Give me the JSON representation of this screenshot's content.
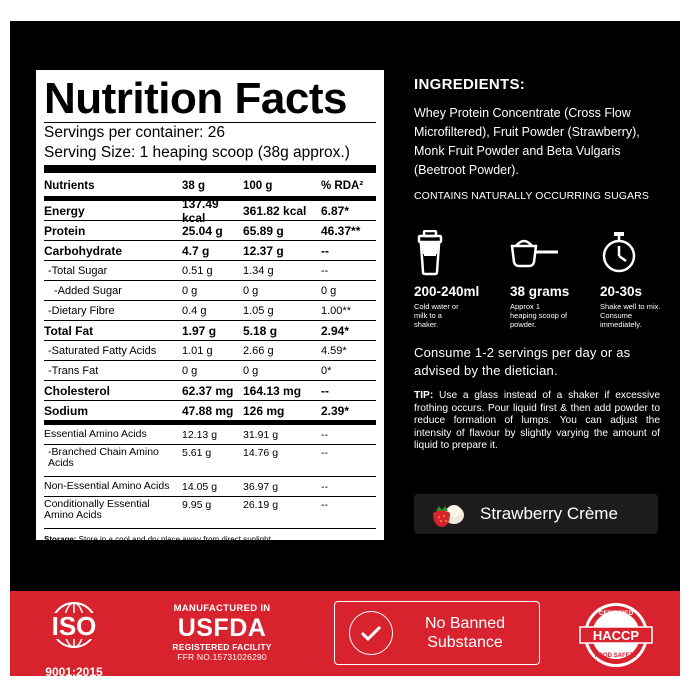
{
  "nutrition": {
    "title": "Nutrition Facts",
    "servings_per_container": "Servings per container: 26",
    "serving_size": "Serving Size: 1 heaping scoop (38g approx.)",
    "header": [
      "Nutrients",
      "38 g",
      "100 g",
      "% RDA²"
    ],
    "rows": [
      [
        "Energy",
        "137.49 kcal",
        "361.82 kcal",
        "6.87*"
      ],
      [
        "Protein",
        "25.04 g",
        "65.89 g",
        "46.37**"
      ],
      [
        "Carbohydrate",
        "4.7 g",
        "12.37 g",
        "--"
      ],
      [
        "-Total Sugar",
        "0.51 g",
        "1.34 g",
        "--"
      ],
      [
        "-Added Sugar",
        "0 g",
        "0 g",
        "0 g"
      ],
      [
        "-Dietary Fibre",
        "0.4 g",
        "1.05 g",
        "1.00**"
      ],
      [
        "Total Fat",
        "1.97 g",
        "5.18 g",
        "2.94*"
      ],
      [
        "-Saturated Fatty Acids",
        "1.01 g",
        "2.66 g",
        "4.59*"
      ],
      [
        "-Trans Fat",
        "0 g",
        "0 g",
        "0*"
      ],
      [
        "Cholesterol",
        "62.37 mg",
        "164.13 mg",
        "--"
      ],
      [
        "Sodium",
        "47.88 mg",
        "126 mg",
        "2.39*"
      ]
    ],
    "amino_rows": [
      [
        "Essential Amino Acids",
        "12.13 g",
        "31.91 g",
        "--"
      ],
      [
        "-Branched Chain Amino Acids",
        "5.61 g",
        "14.76 g",
        "--"
      ],
      [
        "Non-Essential Amino Acids",
        "14.05 g",
        "36.97 g",
        "--"
      ],
      [
        "Conditionally Essential Amino Acids",
        "9.95 g",
        "26.19 g",
        "--"
      ]
    ],
    "storage_label": "Storage:",
    "storage_text": " Store in a cool and dry place away from direct sunlight."
  },
  "ingredients": {
    "title": "INGREDIENTS:",
    "text": "Whey Protein Concentrate (Cross Flow Microfiltered), Fruit Powder (Strawberry), Monk Fruit Powder and Beta Vulgaris (Beetroot Powder).",
    "sugars_note": "CONTAINS NATURALLY OCCURRING SUGARS"
  },
  "usage": [
    {
      "icon": "shaker-icon",
      "label": "200-240ml",
      "sub": "Cold water or milk to a shaker."
    },
    {
      "icon": "scoop-icon",
      "label": "38 grams",
      "sub": "Approx 1 heaping scoop of powder."
    },
    {
      "icon": "stopwatch-icon",
      "label": "20-30s",
      "sub": "Shake well to mix. Consume immediately."
    }
  ],
  "consume_text": "Consume 1-2 servings per day or as advised by the dietician.",
  "tip": {
    "label": "TIP:",
    "text": " Use a glass instead of a shaker if excessive frothing occurs. Pour liquid first & then add powder to reduce formation of lumps. You can adjust the intensity of flavour by slightly varying the amount of liquid to prepare it."
  },
  "flavor": {
    "icon": "strawberry-cream-icon",
    "name": "Strawberry Crème"
  },
  "badges": {
    "iso_mark": "ISO",
    "iso_standard": "9001:2015",
    "fda_top": "MANUFACTURED IN",
    "fda_main": "USFDA",
    "fda_registered": "REGISTERED FACILITY",
    "fda_ffr": "FFR NO.15731026290",
    "banned_text": "No Banned Substance",
    "haccp_certified": "CERTIFIED",
    "haccp_main": "HACCP",
    "haccp_food_safety": "FOOD SAFETY"
  },
  "colors": {
    "panel_bg": "#000000",
    "band_red": "#d8232f",
    "flavor_bg": "#1c1c1c"
  }
}
